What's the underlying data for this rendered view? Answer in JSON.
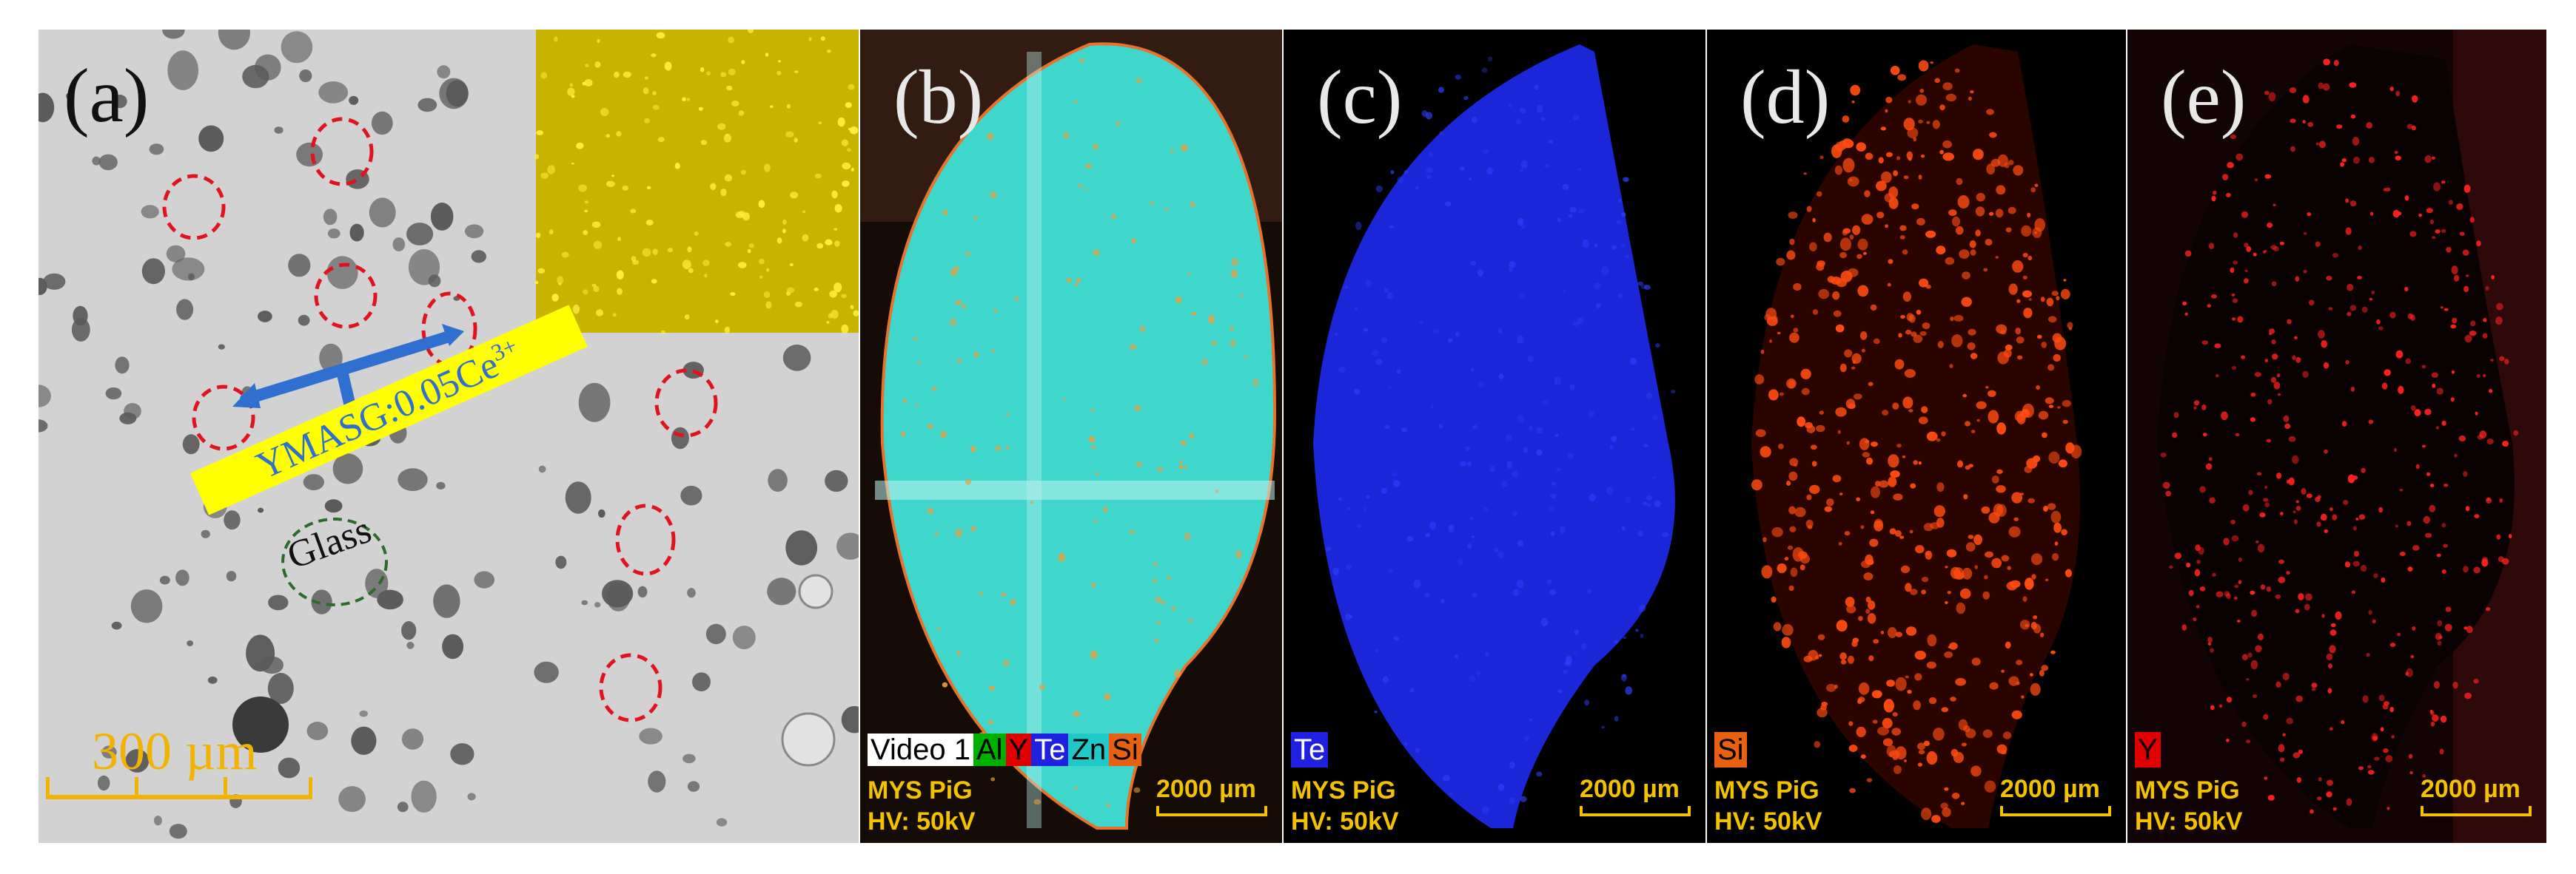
{
  "figure": {
    "panel_a": {
      "label": "(a)",
      "scale_bar": "300 µm",
      "annotation": "YMASG:0.05Ce",
      "annotation_sup": "3+",
      "glass_label": "Glass",
      "colors": {
        "background": "#cfcfcf",
        "particle": "#555555",
        "circle": "#e0141e",
        "glass_circle": "#2d6a2d",
        "arrow": "#2f6fcf",
        "tag_bg": "#ffff00",
        "tag_text": "#2f6fcf",
        "inset": "#c9b800"
      }
    },
    "panel_b": {
      "label": "(b)",
      "legend": [
        "Video 1",
        "Al",
        "Y",
        "Te",
        "Zn",
        "Si"
      ],
      "legend_colors": [
        "#ffffff",
        "#00b000",
        "#e00000",
        "#2020e0",
        "#20c8c8",
        "#e86010"
      ],
      "sample": "MYS PiG",
      "voltage": "HV: 50kV",
      "scale_bar": "2000 µm",
      "colors": {
        "fill": "#38d8d0"
      }
    },
    "panel_c": {
      "label": "(c)",
      "element": "Te",
      "element_color": "#2020e0",
      "sample": "MYS PiG",
      "voltage": "HV: 50kV",
      "scale_bar": "2000 µm",
      "colors": {
        "fill": "#1a24d8"
      }
    },
    "panel_d": {
      "label": "(d)",
      "element": "Si",
      "element_color": "#e86010",
      "sample": "MYS PiG",
      "voltage": "HV: 50kV",
      "scale_bar": "2000 µm",
      "colors": {
        "fill": "#ff3a10"
      }
    },
    "panel_e": {
      "label": "(e)",
      "element": "Y",
      "element_color": "#e00000",
      "sample": "MYS PiG",
      "voltage": "HV: 50kV",
      "scale_bar": "2000 µm",
      "colors": {
        "fill": "#ff2020"
      }
    }
  }
}
